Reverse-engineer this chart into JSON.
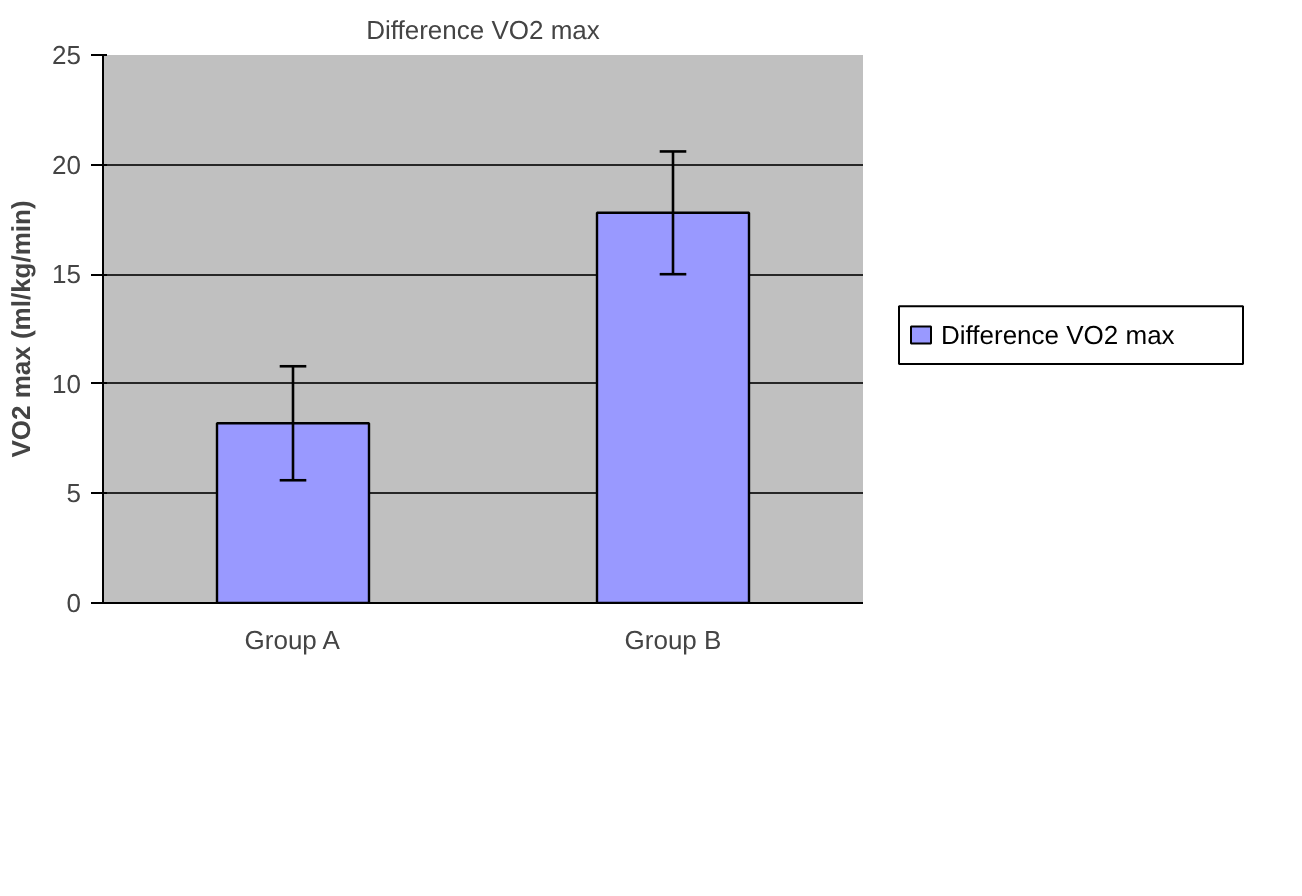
{
  "chart_data": {
    "type": "bar",
    "title": "Difference VO2 max",
    "ylabel": "VO2 max (ml/kg/min)",
    "categories": [
      "Group A",
      "Group B"
    ],
    "series": [
      {
        "name": "Difference VO2 max",
        "color": "#9999ff",
        "values": [
          8.2,
          17.8
        ],
        "errors": [
          2.6,
          2.8
        ]
      }
    ],
    "ylim": [
      0,
      25
    ],
    "yticks": [
      0,
      5,
      10,
      15,
      20,
      25
    ],
    "grid": "y",
    "legend": "right"
  }
}
